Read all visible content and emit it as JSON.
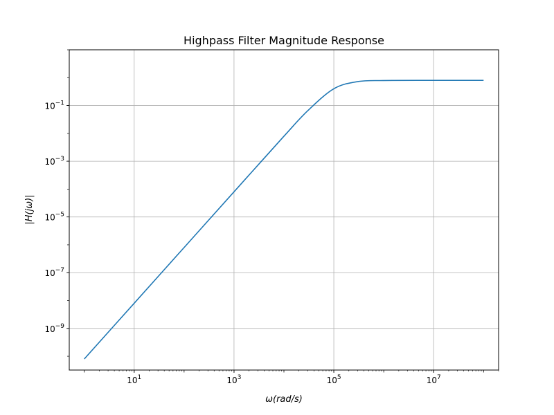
{
  "chart_data": {
    "type": "line",
    "title": "Highpass Filter Magnitude Response",
    "xlabel": "ω(rad/s)",
    "ylabel": "|H(jω)|",
    "xscale": "log",
    "yscale": "log",
    "xlim": [
      0.5,
      200000000
    ],
    "ylim": [
      3.2e-11,
      10
    ],
    "grid": true,
    "line_color": "#1f77b4",
    "x_ticks": [
      {
        "value": 10,
        "base": "10",
        "exp": "1"
      },
      {
        "value": 1000,
        "base": "10",
        "exp": "3"
      },
      {
        "value": 100000,
        "base": "10",
        "exp": "5"
      },
      {
        "value": 10000000,
        "base": "10",
        "exp": "7"
      }
    ],
    "y_ticks": [
      {
        "value": 0.1,
        "base": "10",
        "exp": "−1"
      },
      {
        "value": 0.001,
        "base": "10",
        "exp": "−3"
      },
      {
        "value": 1e-05,
        "base": "10",
        "exp": "−5"
      },
      {
        "value": 1e-07,
        "base": "10",
        "exp": "−7"
      },
      {
        "value": 1e-09,
        "base": "10",
        "exp": "−9"
      }
    ],
    "series": [
      {
        "x": [
          1,
          10,
          100,
          1000,
          10000,
          30000,
          100000,
          300000,
          1000000,
          10000000,
          100000000
        ],
        "values": [
          8e-11,
          8e-09,
          8e-07,
          8e-05,
          0.0079,
          0.065,
          0.4,
          0.72,
          0.79,
          0.8,
          0.8
        ]
      }
    ]
  }
}
